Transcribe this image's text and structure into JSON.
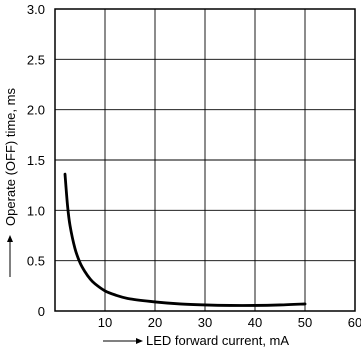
{
  "chart_data": {
    "type": "line",
    "xlabel": "LED forward current, mA",
    "ylabel": "Operate (OFF) time, ms",
    "xlim": [
      0,
      60
    ],
    "ylim": [
      0,
      3.0
    ],
    "x_ticks": [
      0,
      10,
      20,
      30,
      40,
      50,
      60
    ],
    "y_ticks": [
      0,
      0.5,
      1.0,
      1.5,
      2.0,
      2.5,
      3.0
    ],
    "x_tick_labels": [
      "",
      "10",
      "20",
      "30",
      "40",
      "50",
      "60"
    ],
    "y_tick_labels": [
      "0",
      "0.5",
      "1.0",
      "1.5",
      "2.0",
      "2.5",
      "3.0"
    ],
    "grid": true,
    "line_color": "#000000",
    "series": [
      {
        "x": [
          2,
          2.5,
          3,
          4,
          5,
          6,
          7,
          8,
          10,
          12,
          15,
          20,
          25,
          30,
          35,
          40,
          45,
          50
        ],
        "values": [
          1.36,
          1.05,
          0.85,
          0.62,
          0.48,
          0.39,
          0.32,
          0.27,
          0.2,
          0.16,
          0.12,
          0.09,
          0.07,
          0.06,
          0.055,
          0.055,
          0.06,
          0.07
        ]
      }
    ]
  }
}
